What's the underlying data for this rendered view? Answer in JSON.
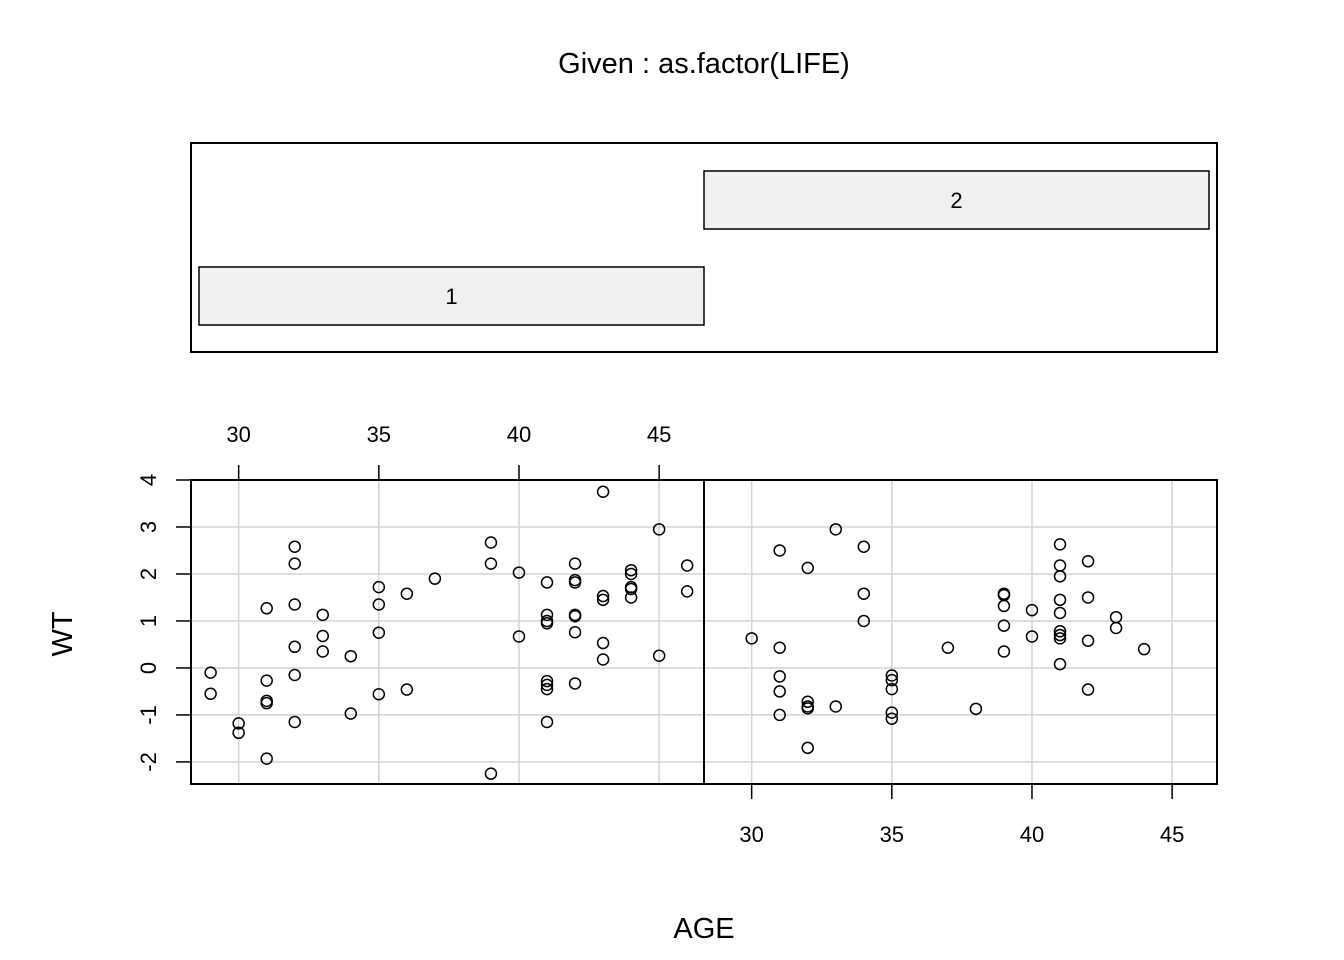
{
  "chart_data": {
    "type": "scatter",
    "plot_kind": "coplot",
    "given_title": "Given : as.factor(LIFE)",
    "xlabel": "AGE",
    "ylabel": "WT",
    "x_ticks": [
      30,
      35,
      40,
      45
    ],
    "y_ticks": [
      -2,
      -1,
      0,
      1,
      2,
      3,
      4
    ],
    "xlim": [
      28.3,
      46.6
    ],
    "ylim": [
      -2.47,
      4.0
    ],
    "grid": true,
    "colors": {
      "background": "#ffffff",
      "grid": "#d3d3d3",
      "strip_fill": "#f0f0f0",
      "ink": "#000000"
    },
    "panels": [
      {
        "given_level": "1",
        "points": [
          [
            29,
            -0.1
          ],
          [
            29,
            -0.55
          ],
          [
            30,
            -1.18
          ],
          [
            30,
            -1.38
          ],
          [
            31,
            1.27
          ],
          [
            31,
            -0.27
          ],
          [
            31,
            -0.7
          ],
          [
            31,
            -0.75
          ],
          [
            31,
            -1.93
          ],
          [
            32,
            2.58
          ],
          [
            32,
            2.22
          ],
          [
            32,
            1.35
          ],
          [
            32,
            0.45
          ],
          [
            32,
            -0.15
          ],
          [
            32,
            -1.15
          ],
          [
            33,
            1.13
          ],
          [
            33,
            0.68
          ],
          [
            33,
            0.35
          ],
          [
            34,
            0.25
          ],
          [
            34,
            -0.97
          ],
          [
            35,
            1.72
          ],
          [
            35,
            1.35
          ],
          [
            35,
            0.75
          ],
          [
            35,
            -0.56
          ],
          [
            36,
            1.58
          ],
          [
            36,
            -0.46
          ],
          [
            37,
            1.9
          ],
          [
            39,
            2.67
          ],
          [
            39,
            2.22
          ],
          [
            39,
            -2.25
          ],
          [
            40,
            2.03
          ],
          [
            40,
            0.67
          ],
          [
            41,
            1.82
          ],
          [
            41,
            1.13
          ],
          [
            41,
            1.0
          ],
          [
            41,
            0.95
          ],
          [
            41,
            -0.28
          ],
          [
            41,
            -0.36
          ],
          [
            41,
            -0.45
          ],
          [
            41,
            -1.15
          ],
          [
            42,
            2.22
          ],
          [
            42,
            1.87
          ],
          [
            42,
            1.82
          ],
          [
            42,
            1.13
          ],
          [
            42,
            1.1
          ],
          [
            42,
            0.76
          ],
          [
            42,
            -0.33
          ],
          [
            43,
            3.75
          ],
          [
            43,
            1.53
          ],
          [
            43,
            1.45
          ],
          [
            43,
            0.53
          ],
          [
            43,
            0.18
          ],
          [
            44,
            2.08
          ],
          [
            44,
            2.0
          ],
          [
            44,
            1.72
          ],
          [
            44,
            1.68
          ],
          [
            44,
            1.5
          ],
          [
            45,
            2.95
          ],
          [
            45,
            0.26
          ],
          [
            46,
            2.18
          ],
          [
            46,
            1.63
          ]
        ]
      },
      {
        "given_level": "2",
        "points": [
          [
            30,
            0.63
          ],
          [
            31,
            2.5
          ],
          [
            31,
            0.43
          ],
          [
            31,
            -0.18
          ],
          [
            31,
            -0.5
          ],
          [
            31,
            -1.0
          ],
          [
            32,
            2.13
          ],
          [
            32,
            -0.72
          ],
          [
            32,
            -0.82
          ],
          [
            32,
            -0.86
          ],
          [
            32,
            -1.7
          ],
          [
            33,
            2.95
          ],
          [
            33,
            -0.82
          ],
          [
            34,
            2.58
          ],
          [
            34,
            1.58
          ],
          [
            34,
            1.0
          ],
          [
            35,
            -0.16
          ],
          [
            35,
            -0.26
          ],
          [
            35,
            -0.45
          ],
          [
            35,
            -0.95
          ],
          [
            35,
            -1.08
          ],
          [
            37,
            0.43
          ],
          [
            38,
            -0.87
          ],
          [
            39,
            1.58
          ],
          [
            39,
            1.55
          ],
          [
            39,
            1.32
          ],
          [
            39,
            0.9
          ],
          [
            39,
            0.35
          ],
          [
            40,
            1.23
          ],
          [
            40,
            0.67
          ],
          [
            41,
            2.63
          ],
          [
            41,
            2.18
          ],
          [
            41,
            1.95
          ],
          [
            41,
            1.45
          ],
          [
            41,
            1.17
          ],
          [
            41,
            0.78
          ],
          [
            41,
            0.7
          ],
          [
            41,
            0.63
          ],
          [
            41,
            0.08
          ],
          [
            42,
            2.27
          ],
          [
            42,
            1.5
          ],
          [
            42,
            0.58
          ],
          [
            42,
            -0.46
          ],
          [
            43,
            1.08
          ],
          [
            43,
            0.85
          ],
          [
            44,
            0.4
          ]
        ]
      }
    ]
  }
}
